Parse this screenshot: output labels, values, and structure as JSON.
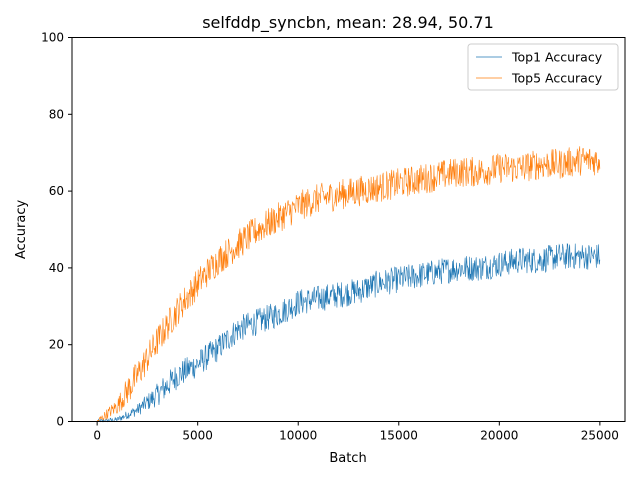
{
  "chart_data": {
    "type": "line",
    "title": "selfddp_syncbn, mean: 28.94, 50.71",
    "xlabel": "Batch",
    "ylabel": "Accuracy",
    "xlim": [
      -1250,
      26250
    ],
    "ylim": [
      0,
      100
    ],
    "xticks": [
      0,
      5000,
      10000,
      15000,
      20000,
      25000
    ],
    "yticks": [
      0,
      20,
      40,
      60,
      80,
      100
    ],
    "grid": false,
    "legend_position": "top-right",
    "series": [
      {
        "name": "Top1 Accuracy",
        "color": "#1f77b4",
        "noise": 3.5,
        "points": [
          [
            0,
            0
          ],
          [
            1000,
            0.5
          ],
          [
            2000,
            3
          ],
          [
            3000,
            7
          ],
          [
            4000,
            12
          ],
          [
            5000,
            15
          ],
          [
            6000,
            19
          ],
          [
            7000,
            24
          ],
          [
            8000,
            26
          ],
          [
            9000,
            28
          ],
          [
            10000,
            31
          ],
          [
            11000,
            32
          ],
          [
            12000,
            33
          ],
          [
            13000,
            34
          ],
          [
            14000,
            36
          ],
          [
            15000,
            37
          ],
          [
            16000,
            38
          ],
          [
            17000,
            39
          ],
          [
            18000,
            40
          ],
          [
            19000,
            40
          ],
          [
            20000,
            41
          ],
          [
            21000,
            42
          ],
          [
            22000,
            42
          ],
          [
            23000,
            43
          ],
          [
            24000,
            43
          ],
          [
            25000,
            43
          ]
        ]
      },
      {
        "name": "Top5 Accuracy",
        "color": "#ff7f0e",
        "noise": 4.0,
        "points": [
          [
            0,
            0
          ],
          [
            1000,
            4
          ],
          [
            2000,
            12
          ],
          [
            3000,
            21
          ],
          [
            4000,
            29
          ],
          [
            5000,
            36
          ],
          [
            6000,
            42
          ],
          [
            7000,
            46
          ],
          [
            8000,
            50
          ],
          [
            9000,
            53
          ],
          [
            10000,
            56
          ],
          [
            11000,
            58
          ],
          [
            12000,
            59
          ],
          [
            13000,
            60
          ],
          [
            14000,
            61
          ],
          [
            15000,
            62
          ],
          [
            16000,
            63
          ],
          [
            17000,
            64
          ],
          [
            18000,
            65
          ],
          [
            19000,
            65
          ],
          [
            20000,
            66
          ],
          [
            21000,
            66
          ],
          [
            22000,
            67
          ],
          [
            23000,
            67
          ],
          [
            24000,
            68
          ],
          [
            25000,
            68
          ]
        ]
      }
    ]
  }
}
